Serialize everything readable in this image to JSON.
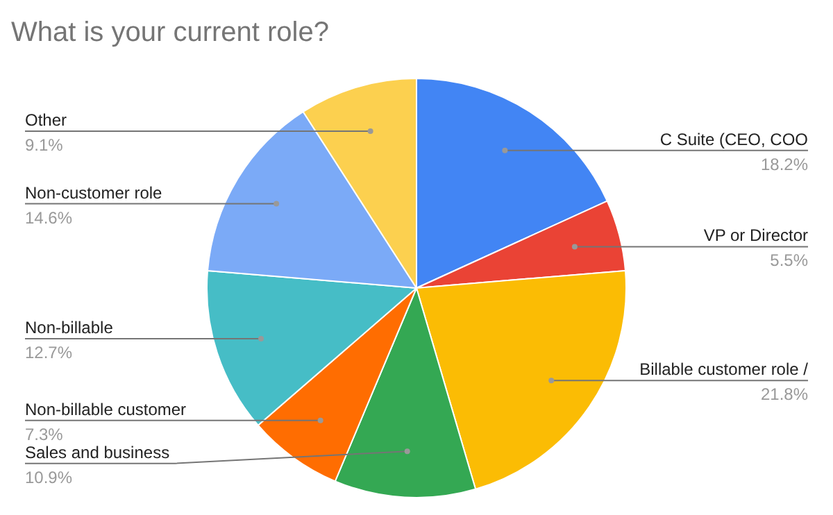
{
  "chart_data": {
    "type": "pie",
    "title": "What is your current role?",
    "categories": [
      "C Suite (CEO, COO",
      "VP or Director",
      "Billable customer role /",
      "Sales and business",
      "Non-billable customer",
      "Non-billable",
      "Non-customer role",
      "Other"
    ],
    "values": [
      18.2,
      5.5,
      21.8,
      10.9,
      7.3,
      12.7,
      14.6,
      9.1
    ],
    "value_labels": [
      "18.2%",
      "5.5%",
      "21.8%",
      "10.9%",
      "7.3%",
      "12.7%",
      "14.6%",
      "9.1%"
    ],
    "colors": [
      "#4285f4",
      "#ea4335",
      "#fbbc04",
      "#34a853",
      "#ff6d01",
      "#46bdc6",
      "#7baaf7",
      "#fcd04f"
    ],
    "legend": false
  }
}
